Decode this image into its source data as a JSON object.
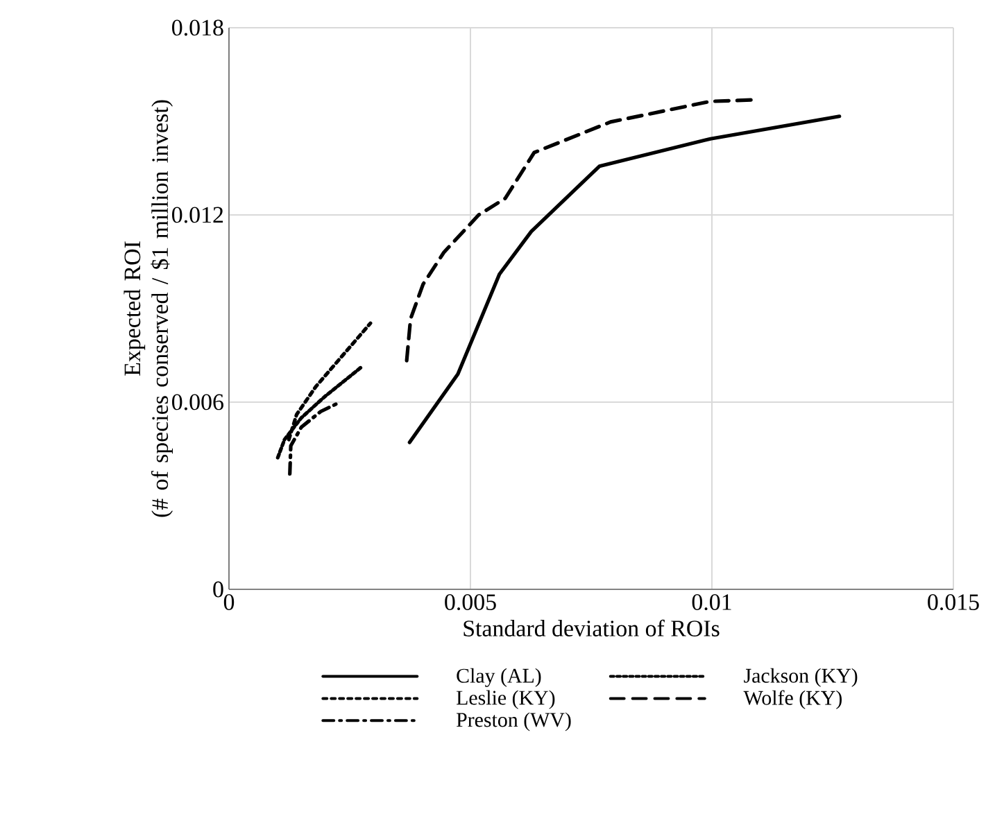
{
  "chart_data": {
    "type": "line",
    "xlabel": "Standard deviation of ROIs",
    "ylabel": "Expected ROI\n(# of species conserved / $1 million invest)",
    "xlim": [
      0,
      0.015
    ],
    "xticks": [
      0,
      0.005,
      0.01,
      0.015
    ],
    "ylim": [
      0,
      0.018
    ],
    "yticks": [
      0,
      0.006,
      0.012,
      0.018
    ],
    "grid": true,
    "legend": "bottom",
    "series": [
      {
        "name": "Clay (AL)",
        "color": "#000000",
        "line_style": "solid",
        "x": [
          0.00374,
          0.00474,
          0.0056,
          0.00626,
          0.00767,
          0.00997,
          0.01264
        ],
        "values": [
          0.00471,
          0.0069,
          0.0101,
          0.01147,
          0.01356,
          0.01444,
          0.01516
        ]
      },
      {
        "name": "Jackson (KY)",
        "color": "#000000",
        "line_style": "dotted",
        "x": [
          0.00101,
          0.00115,
          0.0015,
          0.002,
          0.00273
        ],
        "values": [
          0.00422,
          0.0048,
          0.0055,
          0.0062,
          0.00711
        ]
      },
      {
        "name": "Leslie (KY)",
        "color": "#000000",
        "line_style": "dashed",
        "x": [
          0.00124,
          0.0014,
          0.0018,
          0.0023,
          0.00293
        ],
        "values": [
          0.0048,
          0.0056,
          0.0065,
          0.0074,
          0.00853
        ]
      },
      {
        "name": "Wolfe (KY)",
        "color": "#000000",
        "line_style": "long dashed",
        "x": [
          0.00368,
          0.00376,
          0.00402,
          0.00445,
          0.00517,
          0.00572,
          0.00632,
          0.0079,
          0.00997,
          0.01092
        ],
        "values": [
          0.00733,
          0.00867,
          0.00978,
          0.0108,
          0.012,
          0.01253,
          0.014,
          0.01498,
          0.01564,
          0.01569
        ]
      },
      {
        "name": "Preston (WV)",
        "color": "#000000",
        "line_style": "dash dot",
        "x": [
          0.00126,
          0.00128,
          0.0015,
          0.0019,
          0.0023
        ],
        "values": [
          0.0037,
          0.0046,
          0.0052,
          0.0057,
          0.006
        ]
      }
    ]
  }
}
